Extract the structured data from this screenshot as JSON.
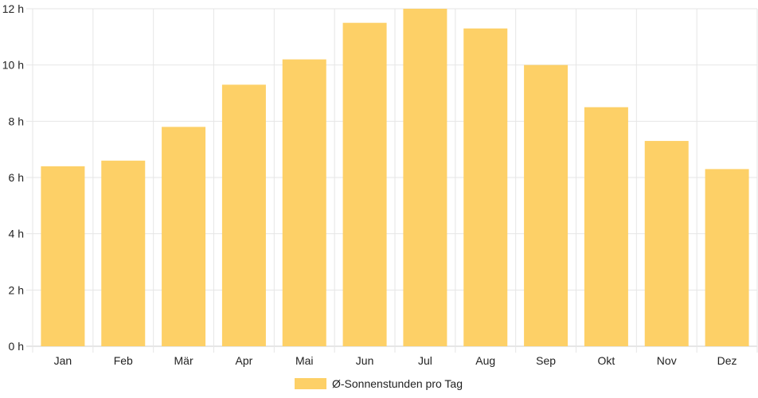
{
  "chart_data": {
    "type": "bar",
    "categories": [
      "Jan",
      "Feb",
      "Mär",
      "Apr",
      "Mai",
      "Jun",
      "Jul",
      "Aug",
      "Sep",
      "Okt",
      "Nov",
      "Dez"
    ],
    "series": [
      {
        "name": "Ø-Sonnenstunden pro Tag",
        "values": [
          6.4,
          6.6,
          7.8,
          9.3,
          10.2,
          11.5,
          12.0,
          11.3,
          10.0,
          8.5,
          7.3,
          6.3
        ],
        "color": "#fdd067"
      }
    ],
    "yticks": [
      "0 h",
      "2 h",
      "4 h",
      "6 h",
      "8 h",
      "10 h",
      "12 h"
    ],
    "ylim": [
      0,
      12
    ],
    "grid": true,
    "legend": "bottom-center"
  }
}
